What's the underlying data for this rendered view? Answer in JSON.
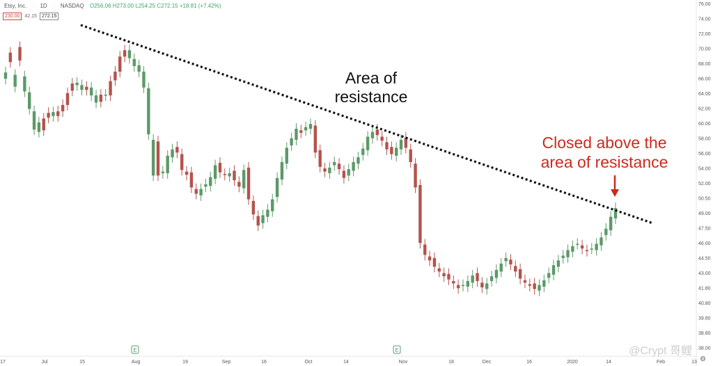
{
  "header": {
    "symbol": "Etsy, Inc.",
    "interval": "1D",
    "exchange": "NASDAQ",
    "ohlc": "O256.06 H273.00 L254.25 C272.15 +18.81 (+7.42%)",
    "box1": "230.00",
    "mid": "42.15",
    "box2": "272.15"
  },
  "watermark": "@Crypt 哥鲤",
  "chart_data": {
    "type": "candlestick",
    "y_ticks": [
      "76.00",
      "74.00",
      "72.00",
      "70.00",
      "68.00",
      "66.00",
      "64.00",
      "62.00",
      "60.00",
      "58.00",
      "56.00",
      "54.00",
      "52.00",
      "50.50",
      "49.00",
      "47.50",
      "46.00",
      "44.50",
      "43.00",
      "41.80",
      "40.80",
      "39.80",
      "38.80",
      "38.00"
    ],
    "x_ticks": [
      "17",
      "Jul",
      "15",
      "Aug",
      "19",
      "Sep",
      "16",
      "Oct",
      "14",
      "Nov",
      "18",
      "Dec",
      "16",
      "2020",
      "14",
      "Feb",
      "13"
    ],
    "annotations": {
      "resistance": [
        "Area of",
        "resistance"
      ],
      "closed": [
        "Closed above the",
        "area of resistance"
      ]
    },
    "colors": {
      "up": "#5b9a68",
      "down": "#b5524c",
      "annotation": "#cc2a1f",
      "trend": "#111111"
    },
    "earnings_markers": [
      "E",
      "E"
    ]
  }
}
